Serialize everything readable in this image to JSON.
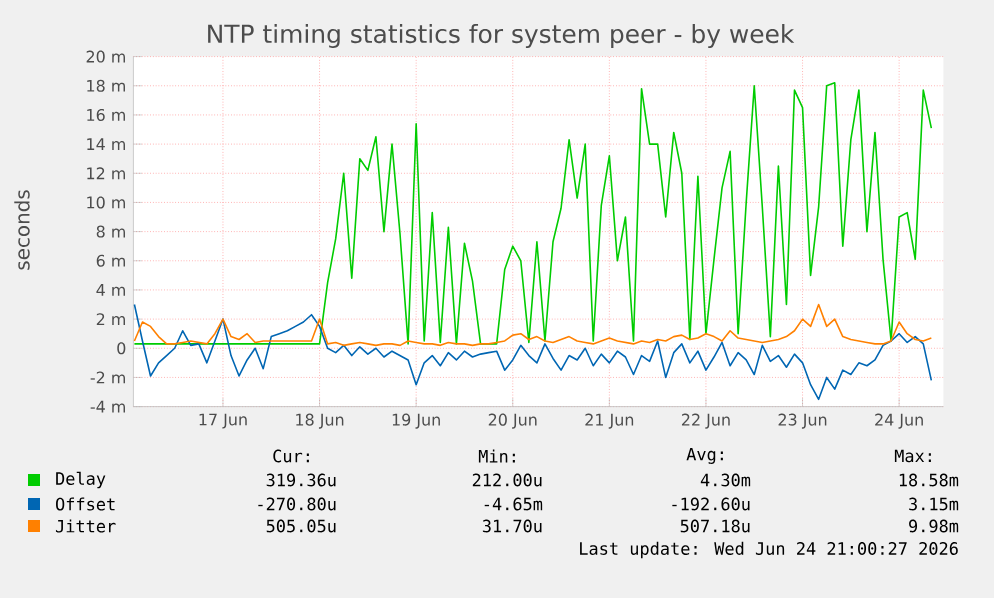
{
  "chart_data": {
    "type": "line",
    "title": "NTP timing statistics for system peer - by week",
    "ylabel": "seconds",
    "x": [
      "2026-06-16T14:00",
      "2026-06-16T16:00",
      "2026-06-16T18:00",
      "2026-06-16T20:00",
      "2026-06-16T22:00",
      "2026-06-17T00:00",
      "2026-06-17T02:00",
      "2026-06-17T04:00",
      "2026-06-17T06:00",
      "2026-06-17T08:00",
      "2026-06-17T10:00",
      "2026-06-17T12:00",
      "2026-06-17T14:00",
      "2026-06-17T16:00",
      "2026-06-17T18:00",
      "2026-06-17T20:00",
      "2026-06-17T22:00",
      "2026-06-18T00:00",
      "2026-06-18T02:00",
      "2026-06-18T04:00",
      "2026-06-18T06:00",
      "2026-06-18T08:00",
      "2026-06-18T10:00",
      "2026-06-18T12:00",
      "2026-06-18T14:00",
      "2026-06-18T16:00",
      "2026-06-18T18:00",
      "2026-06-18T20:00",
      "2026-06-18T22:00",
      "2026-06-19T00:00",
      "2026-06-19T02:00",
      "2026-06-19T04:00",
      "2026-06-19T06:00",
      "2026-06-19T08:00",
      "2026-06-19T10:00",
      "2026-06-19T12:00",
      "2026-06-19T14:00",
      "2026-06-19T16:00",
      "2026-06-19T18:00",
      "2026-06-19T20:00",
      "2026-06-19T22:00",
      "2026-06-20T00:00",
      "2026-06-20T02:00",
      "2026-06-20T04:00",
      "2026-06-20T06:00",
      "2026-06-20T08:00",
      "2026-06-20T10:00",
      "2026-06-20T12:00",
      "2026-06-20T14:00",
      "2026-06-20T16:00",
      "2026-06-20T18:00",
      "2026-06-20T20:00",
      "2026-06-20T22:00",
      "2026-06-21T00:00",
      "2026-06-21T02:00",
      "2026-06-21T04:00",
      "2026-06-21T06:00",
      "2026-06-21T08:00",
      "2026-06-21T10:00",
      "2026-06-21T12:00",
      "2026-06-21T14:00",
      "2026-06-21T16:00",
      "2026-06-21T18:00",
      "2026-06-21T20:00",
      "2026-06-21T22:00",
      "2026-06-22T00:00",
      "2026-06-22T02:00",
      "2026-06-22T04:00",
      "2026-06-22T06:00",
      "2026-06-22T08:00",
      "2026-06-22T10:00",
      "2026-06-22T12:00",
      "2026-06-22T14:00",
      "2026-06-22T16:00",
      "2026-06-22T18:00",
      "2026-06-22T20:00",
      "2026-06-22T22:00",
      "2026-06-23T00:00",
      "2026-06-23T02:00",
      "2026-06-23T04:00",
      "2026-06-23T06:00",
      "2026-06-23T08:00",
      "2026-06-23T10:00",
      "2026-06-23T12:00",
      "2026-06-23T14:00",
      "2026-06-23T16:00",
      "2026-06-23T18:00",
      "2026-06-23T20:00",
      "2026-06-23T22:00",
      "2026-06-24T00:00",
      "2026-06-24T02:00",
      "2026-06-24T04:00",
      "2026-06-24T06:00",
      "2026-06-24T08:00",
      "2026-06-24T10:00",
      "2026-06-24T12:00",
      "2026-06-24T14:00",
      "2026-06-24T16:00",
      "2026-06-24T18:00",
      "2026-06-24T20:00"
    ],
    "series": [
      {
        "name": "Delay",
        "color": "#00cc00",
        "values": [
          0.3,
          0.3,
          0.3,
          0.3,
          0.3,
          0.3,
          0.3,
          0.3,
          0.3,
          0.3,
          0.3,
          0.3,
          0.3,
          0.3,
          0.3,
          0.3,
          0.3,
          0.3,
          0.3,
          0.3,
          0.3,
          0.3,
          0.3,
          0.3,
          4.5,
          7.5,
          12.0,
          4.8,
          13.0,
          12.2,
          14.5,
          8.0,
          14.0,
          7.8,
          0.3,
          15.4,
          0.5,
          9.3,
          0.4,
          8.3,
          0.3,
          7.2,
          4.6,
          0.3,
          0.3,
          0.3,
          5.4,
          7.0,
          6.0,
          0.4,
          7.3,
          0.5,
          7.3,
          9.6,
          14.3,
          10.3,
          14.0,
          0.5,
          9.8,
          13.2,
          6.0,
          9.0,
          0.5,
          17.8,
          14.0,
          14.0,
          9.0,
          14.8,
          12.0,
          0.6,
          11.8,
          1.0,
          6.1,
          11.0,
          13.5,
          1.0,
          10.0,
          18.0,
          9.7,
          0.8,
          12.5,
          3.0,
          17.7,
          16.5,
          5.0,
          9.7,
          18.0,
          18.2,
          7.0,
          14.3,
          17.7,
          8.0,
          14.8,
          6.1,
          0.5,
          9.0,
          9.3,
          6.1,
          17.7,
          15.1
        ]
      },
      {
        "name": "Offset",
        "color": "#0066b3",
        "values": [
          3.0,
          0.5,
          -1.9,
          -1.0,
          -0.5,
          0.0,
          1.2,
          0.2,
          0.3,
          -1.0,
          0.5,
          2.0,
          -0.5,
          -1.9,
          -0.8,
          0.0,
          -1.4,
          0.8,
          1.0,
          1.2,
          1.5,
          1.8,
          2.3,
          1.5,
          0.0,
          -0.3,
          0.2,
          -0.5,
          0.1,
          -0.4,
          0.0,
          -0.6,
          -0.2,
          -0.5,
          -0.8,
          -2.5,
          -1.0,
          -0.5,
          -1.2,
          -0.3,
          -0.8,
          -0.2,
          -0.6,
          -0.4,
          -0.3,
          -0.2,
          -1.5,
          -0.8,
          0.2,
          -0.5,
          -1.0,
          0.3,
          -0.7,
          -1.5,
          -0.5,
          -0.8,
          0.0,
          -1.2,
          -0.4,
          -1.0,
          -0.2,
          -0.6,
          -1.8,
          -0.5,
          -0.9,
          0.5,
          -2.0,
          -0.3,
          0.3,
          -1.0,
          -0.2,
          -1.5,
          -0.6,
          0.4,
          -1.2,
          -0.3,
          -0.8,
          -1.8,
          0.2,
          -0.9,
          -0.5,
          -1.3,
          -0.4,
          -1.0,
          -2.5,
          -3.5,
          -2.0,
          -2.8,
          -1.5,
          -1.8,
          -1.0,
          -1.2,
          -0.8,
          0.2,
          0.5,
          1.0,
          0.4,
          0.8,
          0.3,
          -2.2
        ]
      },
      {
        "name": "Jitter",
        "color": "#ff8000",
        "values": [
          0.5,
          1.8,
          1.5,
          0.8,
          0.3,
          0.3,
          0.4,
          0.5,
          0.4,
          0.3,
          1.0,
          2.0,
          0.8,
          0.6,
          1.0,
          0.4,
          0.5,
          0.5,
          0.5,
          0.5,
          0.5,
          0.5,
          0.5,
          2.0,
          0.3,
          0.4,
          0.2,
          0.3,
          0.4,
          0.3,
          0.2,
          0.3,
          0.3,
          0.2,
          0.5,
          0.4,
          0.3,
          0.3,
          0.2,
          0.4,
          0.3,
          0.3,
          0.2,
          0.3,
          0.3,
          0.4,
          0.5,
          0.9,
          1.0,
          0.6,
          0.8,
          0.5,
          0.4,
          0.6,
          0.8,
          0.5,
          0.4,
          0.3,
          0.5,
          0.7,
          0.5,
          0.4,
          0.3,
          0.5,
          0.4,
          0.6,
          0.5,
          0.8,
          0.9,
          0.6,
          0.7,
          1.0,
          0.8,
          0.5,
          1.2,
          0.7,
          0.6,
          0.5,
          0.4,
          0.5,
          0.6,
          0.8,
          1.2,
          2.0,
          1.5,
          3.0,
          1.5,
          2.0,
          0.8,
          0.6,
          0.5,
          0.4,
          0.3,
          0.3,
          0.5,
          1.8,
          1.0,
          0.6,
          0.5,
          0.7
        ]
      }
    ],
    "xlim": [
      "2026-06-16T13:45",
      "2026-06-24T23:00"
    ],
    "xticks": [
      {
        "value": "2026-06-17T12:00",
        "label": "17 Jun"
      },
      {
        "value": "2026-06-18T12:00",
        "label": "18 Jun"
      },
      {
        "value": "2026-06-19T12:00",
        "label": "19 Jun"
      },
      {
        "value": "2026-06-20T12:00",
        "label": "20 Jun"
      },
      {
        "value": "2026-06-21T12:00",
        "label": "21 Jun"
      },
      {
        "value": "2026-06-22T12:00",
        "label": "22 Jun"
      },
      {
        "value": "2026-06-23T12:00",
        "label": "23 Jun"
      },
      {
        "value": "2026-06-24T12:00",
        "label": "24 Jun"
      }
    ],
    "ylim": [
      -4,
      20
    ],
    "yticks": [
      {
        "value": -4,
        "label": "-4 m"
      },
      {
        "value": -2,
        "label": "-2 m"
      },
      0,
      {
        "value": 2,
        "label": "2 m"
      },
      {
        "value": 4,
        "label": "4 m"
      },
      {
        "value": 6,
        "label": "6 m"
      },
      {
        "value": 8,
        "label": "8 m"
      },
      {
        "value": 10,
        "label": "10 m"
      },
      {
        "value": 12,
        "label": "12 m"
      },
      {
        "value": 14,
        "label": "14 m"
      },
      {
        "value": 16,
        "label": "16 m"
      },
      {
        "value": 18,
        "label": "18 m"
      },
      {
        "value": 20,
        "label": "20 m"
      }
    ],
    "grid": true,
    "legend": "bottom",
    "annotations": [
      "Cur:",
      "Min:",
      "Avg:",
      "Max:",
      "319.36u",
      "212.00u",
      "4.30m",
      "18.58m",
      "-270.80u",
      "-4.65m",
      "-192.60u",
      "3.15m",
      "505.05u",
      "31.70u",
      "507.18u",
      "9.98m",
      "Last update: Wed Jun 24 21:00:27 2026"
    ]
  }
}
